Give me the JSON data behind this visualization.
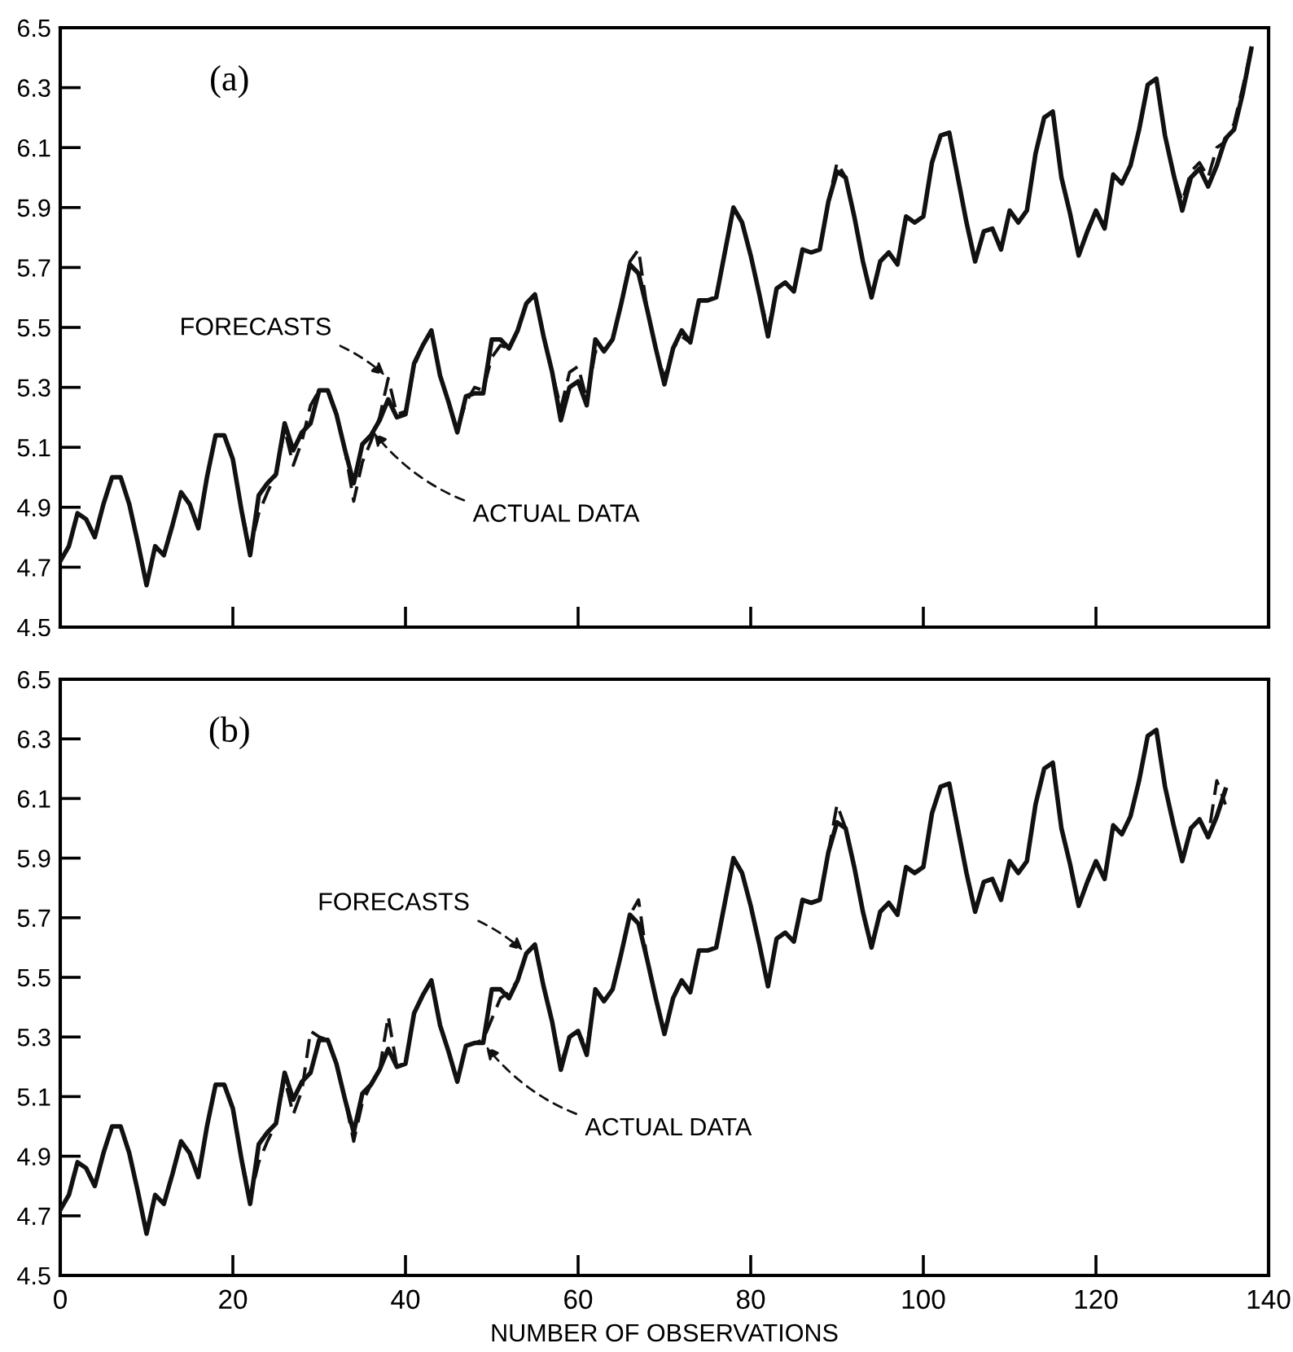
{
  "chart_data": [
    {
      "type": "line",
      "title": "(a)",
      "xlim": [
        0,
        140
      ],
      "ylim": [
        4.5,
        6.5
      ],
      "xticks": [
        {
          "value": 0,
          "label": null
        },
        {
          "value": 20,
          "label": null
        },
        {
          "value": 40,
          "label": null
        },
        {
          "value": 60,
          "label": null
        },
        {
          "value": 80,
          "label": null
        },
        {
          "value": 100,
          "label": null
        },
        {
          "value": 120,
          "label": null
        },
        {
          "value": 140,
          "label": null
        }
      ],
      "yticks": [
        4.5,
        4.7,
        4.9,
        5.1,
        5.3,
        5.5,
        5.7,
        5.9,
        6.1,
        6.3,
        6.5
      ],
      "tick_labels": "y",
      "grid": false,
      "legend": false,
      "annotations": [
        {
          "text": "FORECASTS",
          "x": 38,
          "y": 5.33
        },
        {
          "text": "ACTUAL DATA",
          "x": 36,
          "y": 5.16
        }
      ],
      "series": [
        {
          "color": "#111111",
          "line_style": "solid",
          "x": [
            0,
            1,
            2,
            3,
            4,
            5,
            6,
            7,
            8,
            9,
            10,
            11,
            12,
            13,
            14,
            15,
            16,
            17,
            18,
            19,
            20,
            21,
            22,
            23,
            24,
            25,
            26,
            27,
            28,
            29,
            30,
            31,
            32,
            33,
            34,
            35,
            36,
            37,
            38,
            39,
            40,
            41,
            42,
            43,
            44,
            45,
            46,
            47,
            48,
            49,
            50,
            51,
            52,
            53,
            54,
            55,
            56,
            57,
            58,
            59,
            60,
            61,
            62,
            63,
            64,
            65,
            66,
            67,
            68,
            69,
            70,
            71,
            72,
            73,
            74,
            75,
            76,
            77,
            78,
            79,
            80,
            81,
            82,
            83,
            84,
            85,
            86,
            87,
            88,
            89,
            90,
            91,
            92,
            93,
            94,
            95,
            96,
            97,
            98,
            99,
            100,
            101,
            102,
            103,
            104,
            105,
            106,
            107,
            108,
            109,
            110,
            111,
            112,
            113,
            114,
            115,
            116,
            117,
            118,
            119,
            120,
            121,
            122,
            123,
            124,
            125,
            126,
            127,
            128,
            129,
            130,
            131,
            132,
            133,
            134,
            135,
            136,
            137,
            138
          ],
          "values": [
            4.72,
            4.77,
            4.88,
            4.86,
            4.8,
            4.91,
            5.0,
            5.0,
            4.91,
            4.78,
            4.64,
            4.77,
            4.74,
            4.84,
            4.95,
            4.91,
            4.83,
            5.0,
            5.14,
            5.14,
            5.06,
            4.89,
            4.74,
            4.94,
            4.98,
            5.01,
            5.18,
            5.09,
            5.15,
            5.18,
            5.29,
            5.29,
            5.21,
            5.09,
            4.98,
            5.11,
            5.14,
            5.19,
            5.26,
            5.2,
            5.21,
            5.38,
            5.44,
            5.49,
            5.34,
            5.25,
            5.15,
            5.27,
            5.28,
            5.28,
            5.46,
            5.46,
            5.43,
            5.49,
            5.58,
            5.61,
            5.47,
            5.35,
            5.19,
            5.3,
            5.32,
            5.24,
            5.46,
            5.42,
            5.46,
            5.58,
            5.71,
            5.68,
            5.56,
            5.43,
            5.31,
            5.43,
            5.49,
            5.45,
            5.59,
            5.59,
            5.6,
            5.75,
            5.9,
            5.85,
            5.74,
            5.61,
            5.47,
            5.63,
            5.65,
            5.62,
            5.76,
            5.75,
            5.76,
            5.92,
            6.02,
            6.0,
            5.87,
            5.72,
            5.6,
            5.72,
            5.75,
            5.71,
            5.87,
            5.85,
            5.87,
            6.05,
            6.14,
            6.15,
            6.0,
            5.85,
            5.72,
            5.82,
            5.83,
            5.76,
            5.89,
            5.85,
            5.89,
            6.08,
            6.2,
            6.22,
            6.0,
            5.88,
            5.74,
            5.82,
            5.89,
            5.83,
            6.01,
            5.98,
            6.04,
            6.16,
            6.31,
            6.33,
            6.14,
            6.01,
            5.89,
            6.0,
            6.03,
            5.97,
            6.04,
            6.13,
            6.16,
            6.28,
            6.43
          ]
        },
        {
          "color": "#111111",
          "line_style": "dashed",
          "x": [
            13,
            14,
            15,
            16,
            17,
            18,
            19,
            20,
            21,
            22,
            23,
            24,
            25,
            26,
            27,
            28,
            29,
            30,
            31,
            32,
            33,
            34,
            35,
            36,
            37,
            38,
            39,
            40,
            41,
            42,
            43,
            44,
            45,
            46,
            47,
            48,
            49,
            50,
            51,
            52,
            53,
            54,
            55,
            56,
            57,
            58,
            59,
            60,
            61,
            62,
            63,
            64,
            65,
            66,
            67,
            68,
            69,
            70,
            71,
            72,
            73,
            74,
            75,
            76,
            77,
            78,
            79,
            80,
            81,
            82,
            83,
            84,
            85,
            86,
            87,
            88,
            89,
            90,
            91,
            92,
            93,
            94,
            95,
            96,
            97,
            98,
            99,
            100,
            101,
            102,
            103,
            104,
            105,
            106,
            107,
            108,
            109,
            110,
            111,
            112,
            113,
            114,
            115,
            116,
            117,
            118,
            119,
            120,
            121,
            122,
            123,
            124,
            125,
            126,
            127,
            128,
            129,
            130,
            131,
            132,
            133,
            134,
            135,
            136,
            137,
            138
          ],
          "values": [
            4.84,
            4.95,
            4.91,
            4.83,
            5.0,
            5.14,
            5.14,
            5.06,
            4.89,
            4.76,
            4.88,
            4.95,
            5.01,
            5.16,
            5.04,
            5.12,
            5.24,
            5.29,
            5.29,
            5.21,
            5.09,
            4.92,
            5.05,
            5.12,
            5.2,
            5.33,
            5.21,
            5.22,
            5.37,
            5.44,
            5.49,
            5.34,
            5.25,
            5.16,
            5.25,
            5.3,
            5.29,
            5.4,
            5.44,
            5.43,
            5.49,
            5.58,
            5.61,
            5.47,
            5.35,
            5.23,
            5.35,
            5.37,
            5.26,
            5.42,
            5.42,
            5.46,
            5.58,
            5.72,
            5.76,
            5.56,
            5.43,
            5.33,
            5.43,
            5.47,
            5.45,
            5.59,
            5.59,
            5.6,
            5.75,
            5.9,
            5.85,
            5.74,
            5.61,
            5.49,
            5.63,
            5.65,
            5.62,
            5.76,
            5.75,
            5.76,
            5.92,
            6.05,
            6.0,
            5.87,
            5.72,
            5.6,
            5.72,
            5.75,
            5.71,
            5.87,
            5.85,
            5.87,
            6.05,
            6.14,
            6.15,
            6.0,
            5.85,
            5.72,
            5.82,
            5.83,
            5.76,
            5.89,
            5.85,
            5.89,
            6.08,
            6.2,
            6.22,
            6.0,
            5.88,
            5.74,
            5.82,
            5.89,
            5.83,
            6.01,
            5.98,
            6.04,
            6.16,
            6.31,
            6.33,
            6.14,
            6.01,
            5.92,
            6.02,
            6.05,
            6.0,
            6.1,
            6.12,
            6.18,
            6.3,
            6.43
          ]
        }
      ]
    },
    {
      "type": "line",
      "title": "(b)",
      "xlabel": "NUMBER OF OBSERVATIONS",
      "xlim": [
        0,
        140
      ],
      "ylim": [
        4.5,
        6.5
      ],
      "xticks": [
        0,
        20,
        40,
        60,
        80,
        100,
        120,
        140
      ],
      "yticks": [
        4.5,
        4.7,
        4.9,
        5.1,
        5.3,
        5.5,
        5.7,
        5.9,
        6.1,
        6.3,
        6.5
      ],
      "grid": false,
      "legend": false,
      "annotations": [
        {
          "text": "FORECASTS",
          "x": 54,
          "y": 5.58
        },
        {
          "text": "ACTUAL DATA",
          "x": 49,
          "y": 5.28
        }
      ],
      "series": [
        {
          "color": "#111111",
          "line_style": "solid",
          "x": [
            0,
            1,
            2,
            3,
            4,
            5,
            6,
            7,
            8,
            9,
            10,
            11,
            12,
            13,
            14,
            15,
            16,
            17,
            18,
            19,
            20,
            21,
            22,
            23,
            24,
            25,
            26,
            27,
            28,
            29,
            30,
            31,
            32,
            33,
            34,
            35,
            36,
            37,
            38,
            39,
            40,
            41,
            42,
            43,
            44,
            45,
            46,
            47,
            48,
            49,
            50,
            51,
            52,
            53,
            54,
            55,
            56,
            57,
            58,
            59,
            60,
            61,
            62,
            63,
            64,
            65,
            66,
            67,
            68,
            69,
            70,
            71,
            72,
            73,
            74,
            75,
            76,
            77,
            78,
            79,
            80,
            81,
            82,
            83,
            84,
            85,
            86,
            87,
            88,
            89,
            90,
            91,
            92,
            93,
            94,
            95,
            96,
            97,
            98,
            99,
            100,
            101,
            102,
            103,
            104,
            105,
            106,
            107,
            108,
            109,
            110,
            111,
            112,
            113,
            114,
            115,
            116,
            117,
            118,
            119,
            120,
            121,
            122,
            123,
            124,
            125,
            126,
            127,
            128,
            129,
            130,
            131,
            132,
            133,
            134,
            135
          ],
          "values": [
            4.72,
            4.77,
            4.88,
            4.86,
            4.8,
            4.91,
            5.0,
            5.0,
            4.91,
            4.78,
            4.64,
            4.77,
            4.74,
            4.84,
            4.95,
            4.91,
            4.83,
            5.0,
            5.14,
            5.14,
            5.06,
            4.89,
            4.74,
            4.94,
            4.98,
            5.01,
            5.18,
            5.09,
            5.15,
            5.18,
            5.29,
            5.29,
            5.21,
            5.09,
            4.98,
            5.11,
            5.14,
            5.19,
            5.26,
            5.2,
            5.21,
            5.38,
            5.44,
            5.49,
            5.34,
            5.25,
            5.15,
            5.27,
            5.28,
            5.28,
            5.46,
            5.46,
            5.43,
            5.49,
            5.58,
            5.61,
            5.47,
            5.35,
            5.19,
            5.3,
            5.32,
            5.24,
            5.46,
            5.42,
            5.46,
            5.58,
            5.71,
            5.68,
            5.56,
            5.43,
            5.31,
            5.43,
            5.49,
            5.45,
            5.59,
            5.59,
            5.6,
            5.75,
            5.9,
            5.85,
            5.74,
            5.61,
            5.47,
            5.63,
            5.65,
            5.62,
            5.76,
            5.75,
            5.76,
            5.92,
            6.02,
            6.0,
            5.87,
            5.72,
            5.6,
            5.72,
            5.75,
            5.71,
            5.87,
            5.85,
            5.87,
            6.05,
            6.14,
            6.15,
            6.0,
            5.85,
            5.72,
            5.82,
            5.83,
            5.76,
            5.89,
            5.85,
            5.89,
            6.08,
            6.2,
            6.22,
            6.0,
            5.88,
            5.74,
            5.82,
            5.89,
            5.83,
            6.01,
            5.98,
            6.04,
            6.16,
            6.31,
            6.33,
            6.14,
            6.01,
            5.89,
            6.0,
            6.03,
            5.97,
            6.04,
            6.13
          ]
        },
        {
          "color": "#111111",
          "line_style": "dashed",
          "x": [
            13,
            14,
            15,
            16,
            17,
            18,
            19,
            20,
            21,
            22,
            23,
            24,
            25,
            26,
            27,
            28,
            29,
            30,
            31,
            32,
            33,
            34,
            35,
            36,
            37,
            38,
            39,
            40,
            41,
            42,
            43,
            44,
            45,
            46,
            47,
            48,
            49,
            50,
            51,
            52,
            53,
            54,
            55,
            56,
            57,
            58,
            59,
            60,
            61,
            62,
            63,
            64,
            65,
            66,
            67,
            68,
            69,
            70,
            71,
            72,
            73,
            74,
            75,
            76,
            77,
            78,
            79,
            80,
            81,
            82,
            83,
            84,
            85,
            86,
            87,
            88,
            89,
            90,
            91,
            92,
            93,
            94,
            95,
            96,
            97,
            98,
            99,
            100,
            101,
            102,
            103,
            104,
            105,
            106,
            107,
            108,
            109,
            110,
            111,
            112,
            113,
            114,
            115,
            116,
            117,
            118,
            119,
            120,
            121,
            122,
            123,
            124,
            125,
            126,
            127,
            128,
            129,
            130,
            131,
            132,
            133,
            134,
            135
          ],
          "values": [
            4.84,
            4.95,
            4.91,
            4.83,
            5.0,
            5.14,
            5.14,
            5.06,
            4.89,
            4.76,
            4.88,
            4.95,
            5.01,
            5.16,
            5.04,
            5.12,
            5.32,
            5.3,
            5.29,
            5.21,
            5.09,
            4.95,
            5.08,
            5.14,
            5.19,
            5.37,
            5.2,
            5.21,
            5.38,
            5.44,
            5.49,
            5.34,
            5.25,
            5.15,
            5.27,
            5.28,
            5.29,
            5.36,
            5.43,
            5.45,
            5.49,
            5.58,
            5.61,
            5.47,
            5.35,
            5.21,
            5.3,
            5.32,
            5.26,
            5.46,
            5.42,
            5.46,
            5.58,
            5.71,
            5.76,
            5.56,
            5.43,
            5.31,
            5.43,
            5.49,
            5.45,
            5.59,
            5.59,
            5.6,
            5.75,
            5.9,
            5.85,
            5.74,
            5.61,
            5.47,
            5.63,
            5.65,
            5.62,
            5.76,
            5.75,
            5.76,
            5.92,
            6.08,
            6.0,
            5.87,
            5.72,
            5.6,
            5.72,
            5.75,
            5.71,
            5.87,
            5.85,
            5.87,
            6.05,
            6.14,
            6.15,
            6.0,
            5.85,
            5.72,
            5.82,
            5.83,
            5.76,
            5.89,
            5.85,
            5.89,
            6.08,
            6.2,
            6.22,
            6.0,
            5.88,
            5.74,
            5.82,
            5.89,
            5.83,
            6.01,
            5.98,
            6.04,
            6.16,
            6.31,
            6.33,
            6.14,
            6.01,
            5.89,
            6.0,
            6.03,
            5.97,
            6.16,
            6.08
          ]
        }
      ]
    }
  ]
}
